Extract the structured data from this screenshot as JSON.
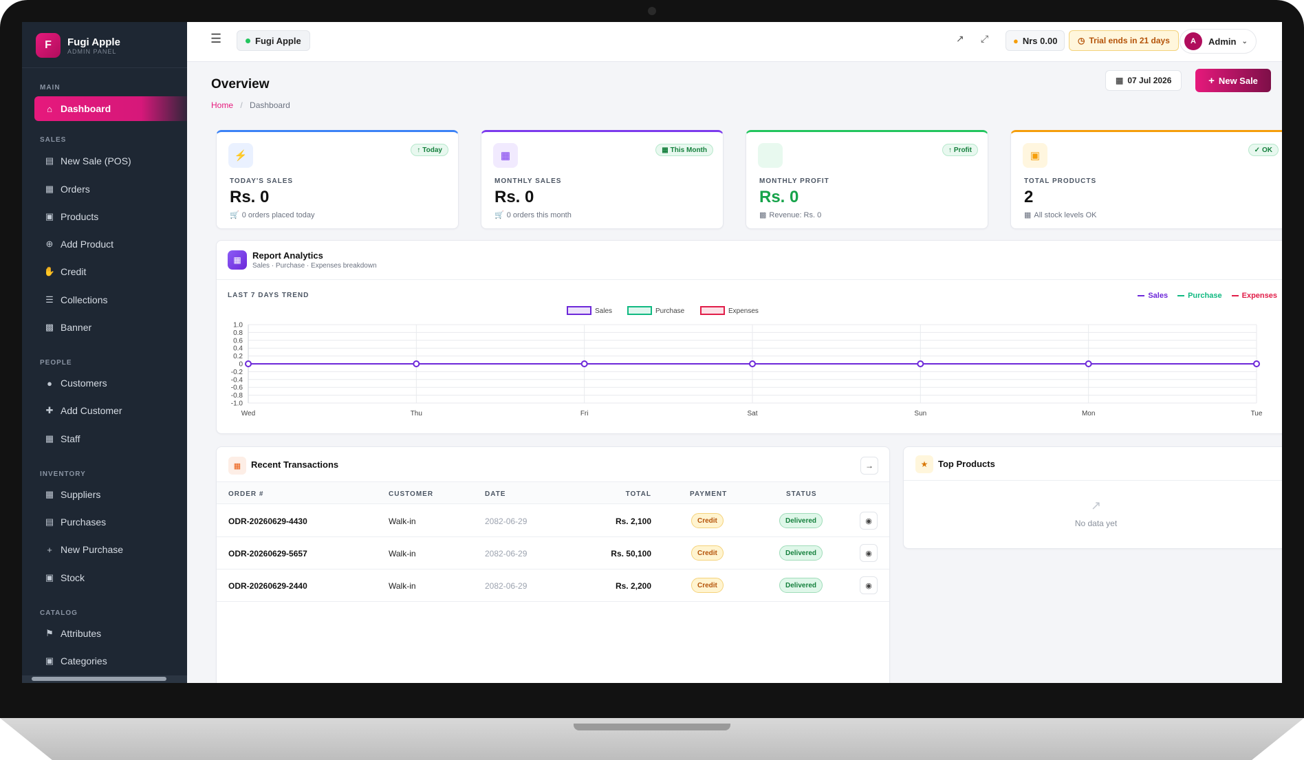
{
  "brand": {
    "initial": "F",
    "name": "Fugi Apple",
    "subtitle": "ADMIN PANEL"
  },
  "sidebar": {
    "sections": [
      {
        "title": "MAIN",
        "items": [
          {
            "label": "Dashboard",
            "icon": "home-icon",
            "active": true
          }
        ]
      },
      {
        "title": "SALES",
        "items": [
          {
            "label": "New Sale (POS)",
            "icon": "cash-register-icon"
          },
          {
            "label": "Orders",
            "icon": "receipt-icon"
          },
          {
            "label": "Products",
            "icon": "box-icon"
          },
          {
            "label": "Add Product",
            "icon": "plus-circle-icon"
          },
          {
            "label": "Credit",
            "icon": "hand-coin-icon"
          },
          {
            "label": "Collections",
            "icon": "layers-icon"
          },
          {
            "label": "Banner",
            "icon": "image-icon"
          }
        ]
      },
      {
        "title": "PEOPLE",
        "items": [
          {
            "label": "Customers",
            "icon": "users-icon"
          },
          {
            "label": "Add Customer",
            "icon": "user-plus-icon"
          },
          {
            "label": "Staff",
            "icon": "id-badge-icon"
          }
        ]
      },
      {
        "title": "INVENTORY",
        "items": [
          {
            "label": "Suppliers",
            "icon": "building-icon"
          },
          {
            "label": "Purchases",
            "icon": "file-icon"
          },
          {
            "label": "New Purchase",
            "icon": "plus-icon"
          },
          {
            "label": "Stock",
            "icon": "boxes-icon"
          }
        ]
      },
      {
        "title": "CATALOG",
        "items": [
          {
            "label": "Attributes",
            "icon": "tags-icon"
          },
          {
            "label": "Categories",
            "icon": "folder-icon"
          }
        ]
      }
    ]
  },
  "topbar": {
    "store": "Fugi Apple",
    "balance": "Nrs 0.00",
    "trial": "Trial ends in 21 days",
    "user_initial": "A",
    "user": "Admin"
  },
  "header": {
    "title": "Overview",
    "breadcrumb_home": "Home",
    "breadcrumb_sep": "/",
    "breadcrumb_current": "Dashboard",
    "date": "07 Jul 2026",
    "new_sale": "New Sale"
  },
  "stats": [
    {
      "label": "TODAY'S SALES",
      "value": "Rs. 0",
      "sub": "0 orders placed today",
      "badge": "Today",
      "accent": "#3b82f6",
      "icon": "bolt-icon"
    },
    {
      "label": "MONTHLY SALES",
      "value": "Rs. 0",
      "sub": "0 orders this month",
      "badge": "This Month",
      "accent": "#7c3aed",
      "icon": "bar-chart-icon"
    },
    {
      "label": "MONTHLY PROFIT",
      "value": "Rs. 0",
      "sub": "Revenue: Rs. 0",
      "badge": "Profit",
      "accent": "#22c55e",
      "icon": "profit-icon"
    },
    {
      "label": "TOTAL PRODUCTS",
      "value": "2",
      "sub": "All stock levels OK",
      "badge": "OK",
      "accent": "#f59e0b",
      "icon": "boxes-icon"
    }
  ],
  "analytics": {
    "title": "Report Analytics",
    "subtitle": "Sales · Purchase · Expenses breakdown",
    "trend_label": "LAST 7 DAYS TREND",
    "legend": [
      {
        "name": "Sales",
        "color": "#6d28d9"
      },
      {
        "name": "Purchase",
        "color": "#10b981"
      },
      {
        "name": "Expenses",
        "color": "#e11d48"
      }
    ]
  },
  "chart_data": {
    "type": "line",
    "x": [
      "Wed",
      "Thu",
      "Fri",
      "Sat",
      "Sun",
      "Mon",
      "Tue"
    ],
    "series": [
      {
        "name": "Sales",
        "values": [
          0,
          0,
          0,
          0,
          0,
          0,
          0
        ],
        "color": "#6d28d9"
      },
      {
        "name": "Purchase",
        "values": [
          0,
          0,
          0,
          0,
          0,
          0,
          0
        ],
        "color": "#10b981"
      },
      {
        "name": "Expenses",
        "values": [
          0,
          0,
          0,
          0,
          0,
          0,
          0
        ],
        "color": "#e11d48"
      }
    ],
    "yticks": [
      "1.0",
      "0.8",
      "0.6",
      "0.4",
      "0.2",
      "0",
      "-0.2",
      "-0.4",
      "-0.6",
      "-0.8",
      "-1.0"
    ],
    "ylim": [
      -1,
      1
    ],
    "grid": true,
    "legend_position": "top-center"
  },
  "transactions": {
    "title": "Recent Transactions",
    "columns": [
      "ORDER #",
      "CUSTOMER",
      "DATE",
      "TOTAL",
      "PAYMENT",
      "STATUS"
    ],
    "rows": [
      {
        "order": "ODR-20260629-4430",
        "customer": "Walk-in",
        "date": "2082-06-29",
        "total": "Rs. 2,100",
        "payment": "Credit",
        "status": "Delivered"
      },
      {
        "order": "ODR-20260629-5657",
        "customer": "Walk-in",
        "date": "2082-06-29",
        "total": "Rs. 50,100",
        "payment": "Credit",
        "status": "Delivered"
      },
      {
        "order": "ODR-20260629-2440",
        "customer": "Walk-in",
        "date": "2082-06-29",
        "total": "Rs. 2,200",
        "payment": "Credit",
        "status": "Delivered"
      }
    ]
  },
  "top_products": {
    "title": "Top Products",
    "empty": "No data yet"
  }
}
